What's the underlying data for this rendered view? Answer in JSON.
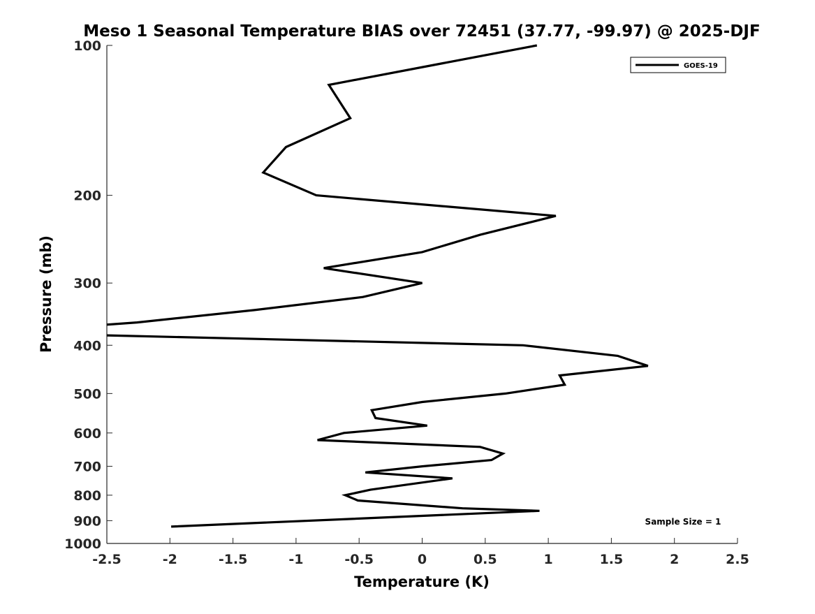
{
  "chart_data": {
    "type": "line",
    "title": "Meso 1 Seasonal Temperature BIAS over 72451 (37.77, -99.97) @ 2025-DJF",
    "xlabel": "Temperature (K)",
    "ylabel": "Pressure (mb)",
    "xlim": [
      -2.5,
      2.5
    ],
    "ylim": [
      100,
      1000
    ],
    "yscale": "log",
    "y_reversed": true,
    "xticks": [
      -2.5,
      -2,
      -1.5,
      -1,
      -0.5,
      0,
      0.5,
      1,
      1.5,
      2,
      2.5
    ],
    "xtick_labels": [
      "-2.5",
      "-2",
      "-1.5",
      "-1",
      "-0.5",
      "0",
      "0.5",
      "1",
      "1.5",
      "2",
      "2.5"
    ],
    "yticks": [
      100,
      200,
      300,
      400,
      500,
      600,
      700,
      800,
      900,
      1000
    ],
    "ytick_labels": [
      "100",
      "200",
      "300",
      "400",
      "500",
      "600",
      "700",
      "800",
      "900",
      "1000"
    ],
    "grid": false,
    "legend_position": "top-right",
    "annotation": "Sample Size = 1",
    "series": [
      {
        "name": "GOES-19",
        "color": "#000000",
        "points": [
          [
            0.91,
            100
          ],
          [
            -0.74,
            120
          ],
          [
            -0.57,
            140
          ],
          [
            -1.08,
            160
          ],
          [
            -1.26,
            180
          ],
          [
            -0.84,
            200
          ],
          [
            1.06,
            220
          ],
          [
            0.46,
            240
          ],
          [
            0.0,
            260
          ],
          [
            -0.78,
            280
          ],
          [
            0.0,
            300
          ],
          [
            -0.47,
            320
          ],
          [
            -1.33,
            340
          ],
          [
            -2.26,
            360
          ],
          [
            -2.9,
            370
          ],
          [
            -2.9,
            380
          ],
          [
            0.8,
            400
          ],
          [
            1.55,
            420
          ],
          [
            1.79,
            440
          ],
          [
            1.09,
            460
          ],
          [
            1.13,
            480
          ],
          [
            0.66,
            500
          ],
          [
            0.0,
            520
          ],
          [
            -0.4,
            540
          ],
          [
            -0.37,
            560
          ],
          [
            0.04,
            580
          ],
          [
            -0.62,
            600
          ],
          [
            -0.83,
            620
          ],
          [
            0.46,
            640
          ],
          [
            0.64,
            660
          ],
          [
            0.55,
            680
          ],
          [
            0.0,
            700
          ],
          [
            -0.45,
            720
          ],
          [
            0.24,
            740
          ],
          [
            -0.41,
            780
          ],
          [
            -0.61,
            800
          ],
          [
            -0.51,
            820
          ],
          [
            0.32,
            850
          ],
          [
            0.93,
            860
          ],
          [
            -1.99,
            925
          ]
        ]
      }
    ]
  }
}
